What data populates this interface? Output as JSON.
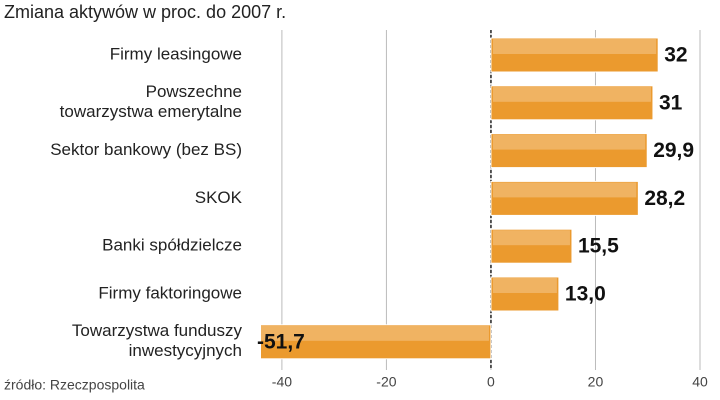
{
  "chart_data": {
    "type": "hbar",
    "title": "Zmiana aktywów w proc. do 2007 r.",
    "source": "źródło: Rzeczpospolita",
    "categories": [
      "Firmy leasingowe",
      "Powszechne\ntowarzystwa emerytalne",
      "Sektor bankowy (bez BS)",
      "SKOK",
      "Banki spółdzielcze",
      "Firmy faktoringowe",
      "Towarzystwa funduszy\ninwestycyjnych"
    ],
    "values": [
      32,
      31,
      29.9,
      28.2,
      15.5,
      13.0,
      -51.7
    ],
    "value_labels": [
      "32",
      "31",
      "29,9",
      "28,2",
      "15,5",
      "13,0",
      "-51,7"
    ],
    "color": "#eb9a2e",
    "xlim": [
      -44,
      40
    ],
    "xticks": [
      -40,
      -20,
      0,
      20,
      40
    ],
    "grid": true
  }
}
